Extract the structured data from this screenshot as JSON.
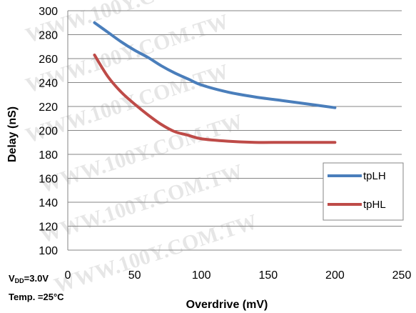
{
  "chart_data": {
    "type": "line",
    "title": "",
    "xlabel": "Overdrive (mV)",
    "ylabel": "Delay (nS)",
    "xlim": [
      0,
      250
    ],
    "ylim": [
      100,
      300
    ],
    "xticks": [
      0,
      50,
      100,
      150,
      200,
      250
    ],
    "yticks": [
      100,
      120,
      140,
      160,
      180,
      200,
      220,
      240,
      260,
      280,
      300
    ],
    "grid": "horizontal",
    "legend_position": "right",
    "series": [
      {
        "name": "tpLH",
        "color": "#4a7ebb",
        "x": [
          20,
          30,
          40,
          50,
          60,
          70,
          80,
          90,
          100,
          120,
          140,
          160,
          180,
          200
        ],
        "y": [
          290,
          282,
          274,
          267,
          261,
          254,
          248,
          243,
          238,
          232,
          228,
          225,
          222,
          219
        ]
      },
      {
        "name": "tpHL",
        "color": "#be4b48",
        "x": [
          20,
          30,
          40,
          50,
          60,
          70,
          80,
          90,
          100,
          120,
          140,
          160,
          180,
          200
        ],
        "y": [
          263,
          245,
          232,
          222,
          213,
          205,
          199,
          196,
          193,
          191,
          190,
          190,
          190,
          190
        ]
      }
    ]
  },
  "conditions": {
    "vdd_prefix": "V",
    "vdd_sub": "DD",
    "vdd_value": "=3.0V",
    "temp": "Temp. =25°C"
  },
  "watermark_text": "WWW.100Y.COM.TW"
}
